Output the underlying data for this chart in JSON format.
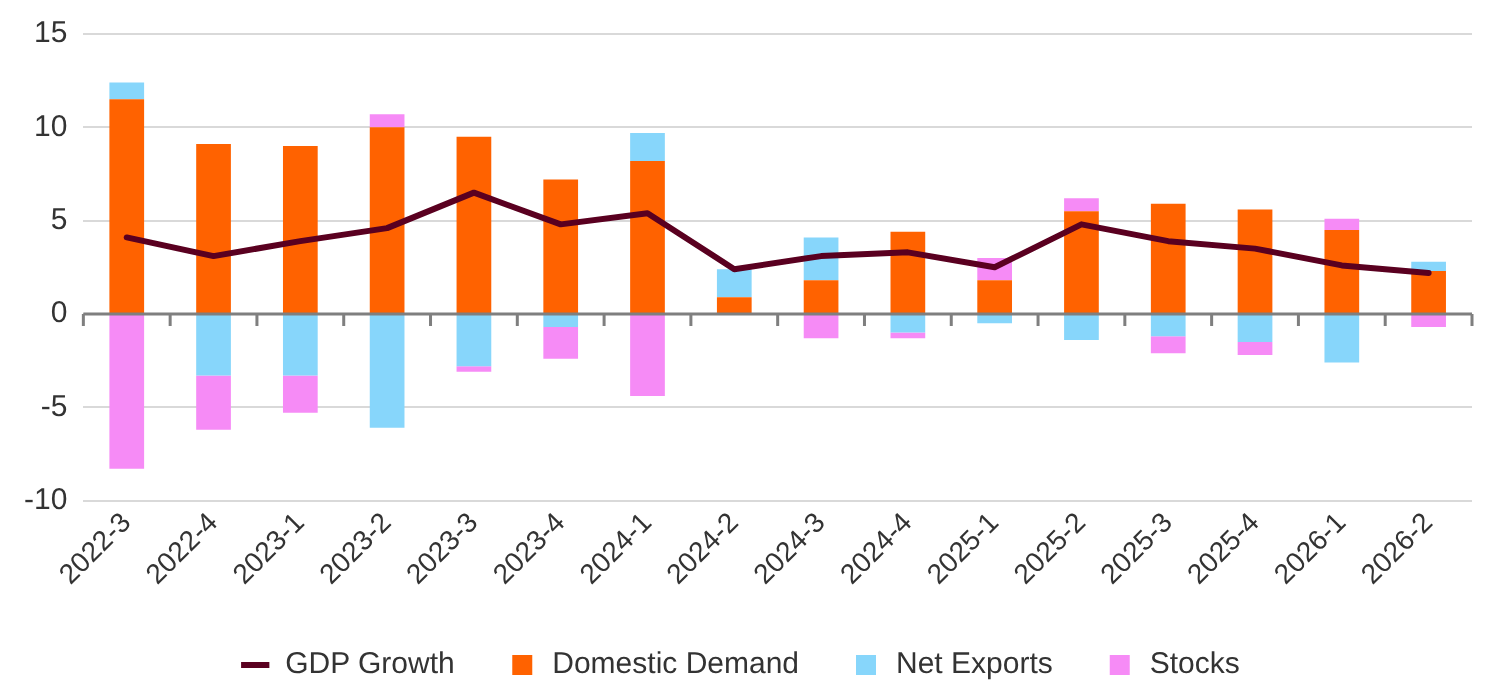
{
  "chart_data": {
    "type": "bar",
    "stacked": true,
    "categories": [
      "2022-3",
      "2022-4",
      "2023-1",
      "2023-2",
      "2023-3",
      "2023-4",
      "2024-1",
      "2024-2",
      "2024-3",
      "2024-4",
      "2025-1",
      "2025-2",
      "2025-3",
      "2025-4",
      "2026-1",
      "2026-2"
    ],
    "series": [
      {
        "name": "Domestic Demand",
        "color": "#ff6200",
        "values": [
          11.5,
          9.1,
          9.0,
          10.0,
          9.5,
          7.2,
          8.2,
          0.9,
          1.8,
          4.4,
          1.8,
          5.5,
          5.9,
          5.6,
          4.5,
          2.3
        ]
      },
      {
        "name": "Net Exports",
        "color": "#87d6fb",
        "values": [
          0.9,
          -3.3,
          -3.3,
          -6.1,
          -2.8,
          -0.7,
          1.5,
          1.5,
          2.3,
          -1.0,
          -0.5,
          -1.4,
          -1.2,
          -1.5,
          -2.6,
          0.5
        ]
      },
      {
        "name": "Stocks",
        "color": "#f68bf6",
        "values": [
          -8.3,
          -2.9,
          -2.0,
          0.7,
          -0.3,
          -1.7,
          -4.4,
          null,
          -1.3,
          -0.3,
          1.2,
          0.7,
          -0.9,
          -0.7,
          0.6,
          -0.7
        ]
      },
      {
        "name": "GDP Growth",
        "type": "line",
        "color": "#5a0020",
        "values": [
          4.1,
          3.1,
          3.9,
          4.6,
          6.5,
          4.8,
          5.4,
          2.4,
          3.1,
          3.3,
          2.5,
          4.8,
          3.9,
          3.5,
          2.6,
          2.2
        ]
      }
    ],
    "ylim": [
      -10,
      15
    ],
    "yticks": [
      -10,
      -5,
      0,
      5,
      10,
      15
    ],
    "grid": "y",
    "legend": "bottom",
    "marker": "none"
  }
}
